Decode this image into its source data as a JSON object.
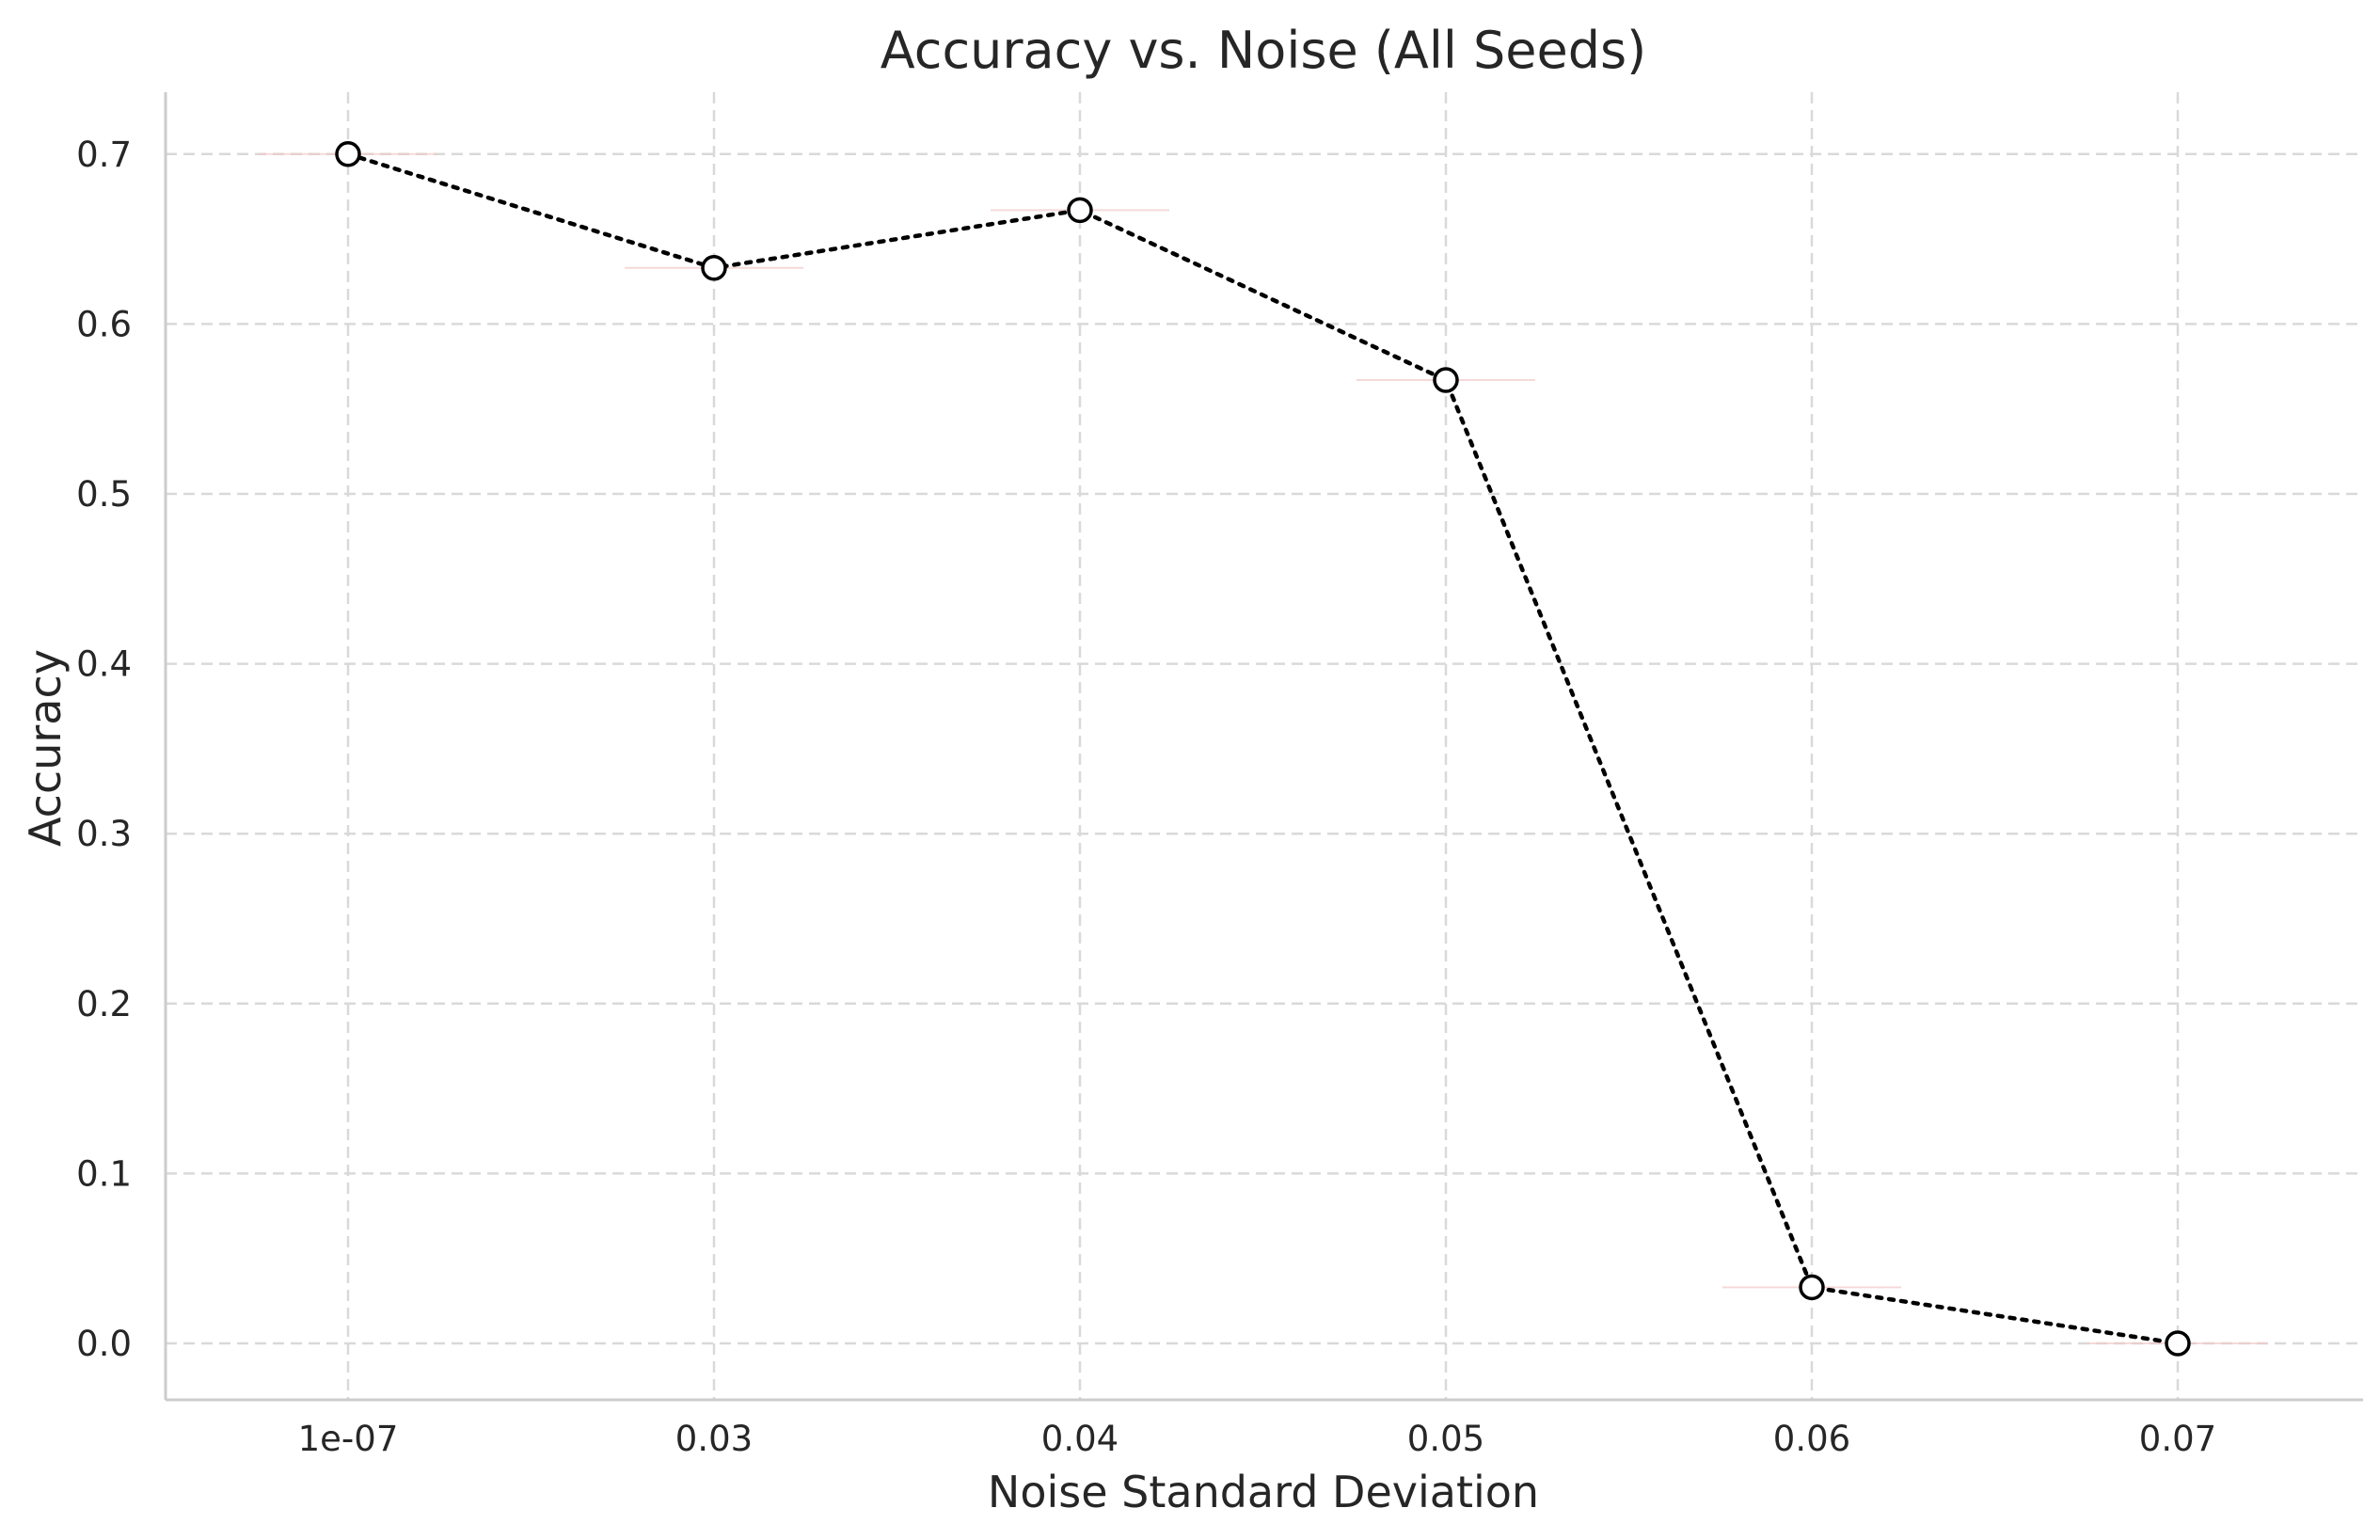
{
  "chart_data": {
    "type": "line",
    "title": "Accuracy vs. Noise (All Seeds)",
    "xlabel": "Noise Standard Deviation",
    "ylabel": "Accuracy",
    "categories": [
      "1e-07",
      "0.03",
      "0.04",
      "0.05",
      "0.06",
      "0.07"
    ],
    "series": [
      {
        "values": [
          0.7,
          0.633,
          0.667,
          0.567,
          0.033,
          0.0
        ]
      }
    ],
    "yticks": [
      "0.0",
      "0.1",
      "0.2",
      "0.3",
      "0.4",
      "0.5",
      "0.6",
      "0.7"
    ],
    "ylim": [
      -0.033,
      0.735
    ],
    "grid": true,
    "line_style": "dotted",
    "marker": "open circle",
    "colors": {
      "line": "#000000",
      "marker_fill": "#ffffff",
      "grid": "#d9d9d9",
      "spine": "#cccccc",
      "text": "#262626"
    }
  }
}
